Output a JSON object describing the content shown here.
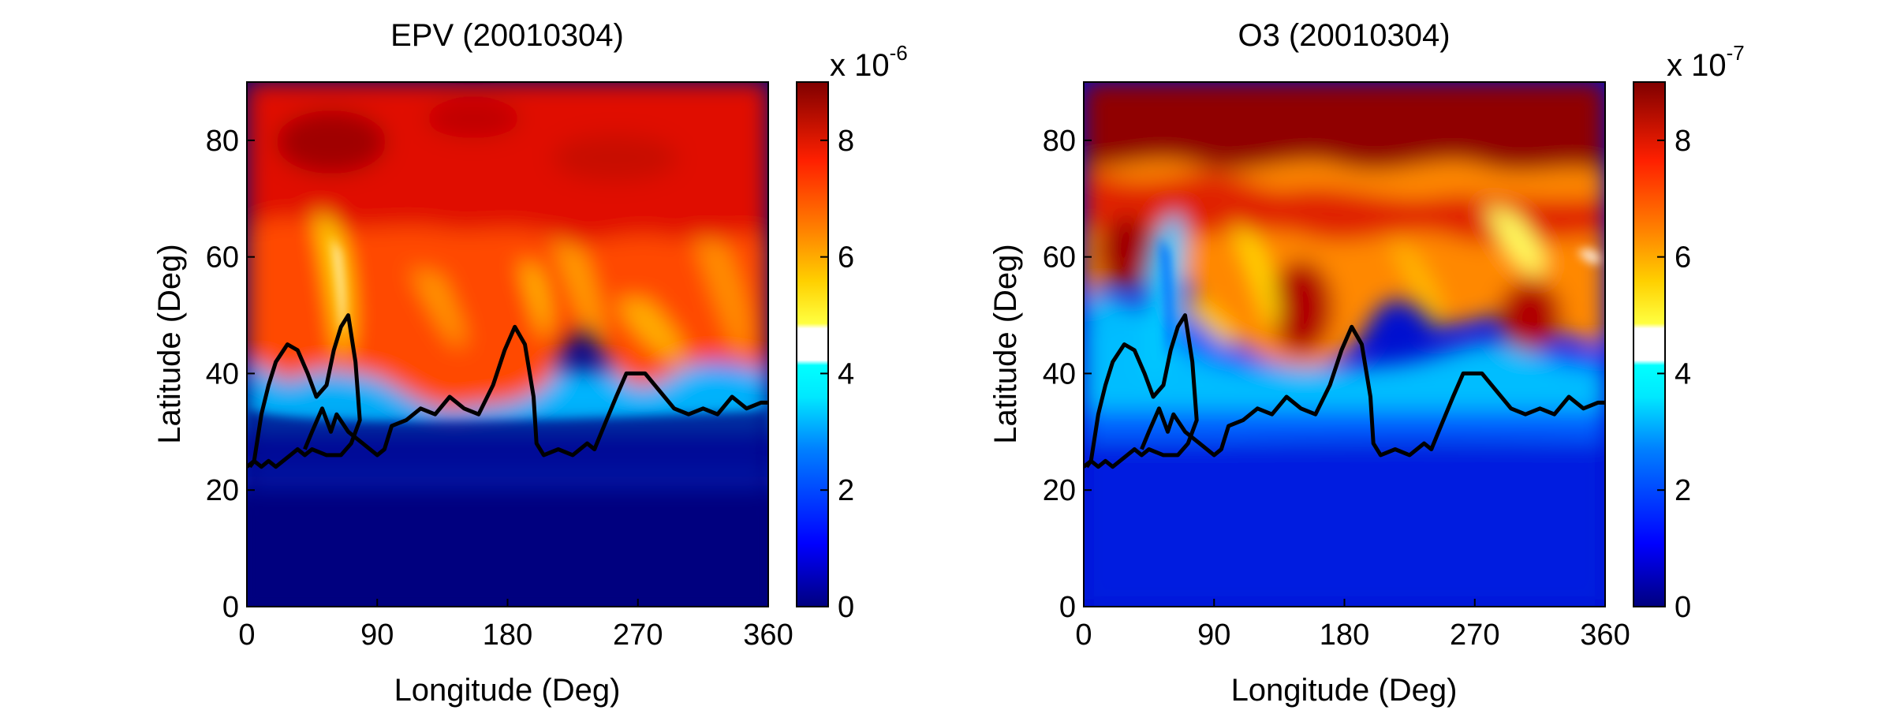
{
  "chart_data": [
    {
      "type": "heatmap",
      "title": "EPV (20010304)",
      "xlabel": "Longitude (Deg)",
      "ylabel": "Latitude (Deg)",
      "xlim": [
        0,
        360
      ],
      "ylim": [
        0,
        90
      ],
      "xticks": [
        "0",
        "90",
        "180",
        "270",
        "360"
      ],
      "yticks": [
        "0",
        "20",
        "40",
        "60",
        "80"
      ],
      "colorbar": {
        "range": [
          0,
          9
        ],
        "ticks": [
          "0",
          "2",
          "4",
          "6",
          "8"
        ],
        "multiplier_base": "x 10",
        "multiplier_exponent": "-6",
        "colormap": "jet with white band near 4.5"
      },
      "contour": {
        "color": "#000000",
        "points": [
          [
            0,
            24
          ],
          [
            5,
            25
          ],
          [
            10,
            33
          ],
          [
            15,
            38
          ],
          [
            20,
            42
          ],
          [
            28,
            45
          ],
          [
            35,
            44
          ],
          [
            42,
            40
          ],
          [
            48,
            36
          ],
          [
            55,
            38
          ],
          [
            60,
            44
          ],
          [
            65,
            48
          ],
          [
            70,
            50
          ],
          [
            75,
            42
          ],
          [
            78,
            32
          ],
          [
            72,
            28
          ],
          [
            65,
            26
          ],
          [
            55,
            26
          ],
          [
            45,
            27
          ],
          [
            40,
            26
          ],
          [
            35,
            27
          ],
          [
            30,
            26
          ],
          [
            25,
            25
          ],
          [
            20,
            24
          ],
          [
            15,
            25
          ],
          [
            10,
            24
          ],
          [
            5,
            25
          ],
          [
            2,
            24
          ]
        ],
        "second": [
          [
            40,
            27
          ],
          [
            45,
            30
          ],
          [
            52,
            34
          ],
          [
            58,
            30
          ],
          [
            62,
            33
          ],
          [
            70,
            30
          ],
          [
            80,
            28
          ],
          [
            90,
            26
          ],
          [
            95,
            27
          ],
          [
            100,
            31
          ],
          [
            110,
            32
          ],
          [
            120,
            34
          ],
          [
            130,
            33
          ],
          [
            140,
            36
          ],
          [
            150,
            34
          ],
          [
            160,
            33
          ],
          [
            170,
            38
          ],
          [
            178,
            44
          ],
          [
            185,
            48
          ],
          [
            192,
            45
          ],
          [
            198,
            36
          ],
          [
            200,
            28
          ],
          [
            205,
            26
          ],
          [
            215,
            27
          ],
          [
            225,
            26
          ],
          [
            235,
            28
          ],
          [
            240,
            27
          ],
          [
            245,
            30
          ],
          [
            255,
            36
          ],
          [
            262,
            40
          ],
          [
            275,
            40
          ],
          [
            285,
            37
          ],
          [
            295,
            34
          ],
          [
            305,
            33
          ],
          [
            315,
            34
          ],
          [
            325,
            33
          ],
          [
            335,
            36
          ],
          [
            345,
            34
          ],
          [
            355,
            35
          ],
          [
            360,
            35
          ]
        ]
      },
      "field_description": "high values north of ~35N, low values south"
    },
    {
      "type": "heatmap",
      "title": "O3 (20010304)",
      "xlabel": "Longitude (Deg)",
      "ylabel": "Latitude (Deg)",
      "xlim": [
        0,
        360
      ],
      "ylim": [
        0,
        90
      ],
      "xticks": [
        "0",
        "90",
        "180",
        "270",
        "360"
      ],
      "yticks": [
        "0",
        "20",
        "40",
        "60",
        "80"
      ],
      "colorbar": {
        "range": [
          0,
          9
        ],
        "ticks": [
          "0",
          "2",
          "4",
          "6",
          "8"
        ],
        "multiplier_base": "x 10",
        "multiplier_exponent": "-7",
        "colormap": "jet with white band near 4.5"
      },
      "contour": {
        "color": "#000000",
        "points": [
          [
            0,
            24
          ],
          [
            5,
            25
          ],
          [
            10,
            33
          ],
          [
            15,
            38
          ],
          [
            20,
            42
          ],
          [
            28,
            45
          ],
          [
            35,
            44
          ],
          [
            42,
            40
          ],
          [
            48,
            36
          ],
          [
            55,
            38
          ],
          [
            60,
            44
          ],
          [
            65,
            48
          ],
          [
            70,
            50
          ],
          [
            75,
            42
          ],
          [
            78,
            32
          ],
          [
            72,
            28
          ],
          [
            65,
            26
          ],
          [
            55,
            26
          ],
          [
            45,
            27
          ],
          [
            40,
            26
          ],
          [
            35,
            27
          ],
          [
            30,
            26
          ],
          [
            25,
            25
          ],
          [
            20,
            24
          ],
          [
            15,
            25
          ],
          [
            10,
            24
          ],
          [
            5,
            25
          ],
          [
            2,
            24
          ]
        ],
        "second": [
          [
            40,
            27
          ],
          [
            45,
            30
          ],
          [
            52,
            34
          ],
          [
            58,
            30
          ],
          [
            62,
            33
          ],
          [
            70,
            30
          ],
          [
            80,
            28
          ],
          [
            90,
            26
          ],
          [
            95,
            27
          ],
          [
            100,
            31
          ],
          [
            110,
            32
          ],
          [
            120,
            34
          ],
          [
            130,
            33
          ],
          [
            140,
            36
          ],
          [
            150,
            34
          ],
          [
            160,
            33
          ],
          [
            170,
            38
          ],
          [
            178,
            44
          ],
          [
            185,
            48
          ],
          [
            192,
            45
          ],
          [
            198,
            36
          ],
          [
            200,
            28
          ],
          [
            205,
            26
          ],
          [
            215,
            27
          ],
          [
            225,
            26
          ],
          [
            235,
            28
          ],
          [
            240,
            27
          ],
          [
            245,
            30
          ],
          [
            255,
            36
          ],
          [
            262,
            40
          ],
          [
            275,
            40
          ],
          [
            285,
            37
          ],
          [
            295,
            34
          ],
          [
            305,
            33
          ],
          [
            315,
            34
          ],
          [
            325,
            33
          ],
          [
            335,
            36
          ],
          [
            345,
            34
          ],
          [
            355,
            35
          ],
          [
            360,
            35
          ]
        ]
      },
      "field_description": "very high values poleward of ~60N, low values south of ~30N"
    }
  ]
}
